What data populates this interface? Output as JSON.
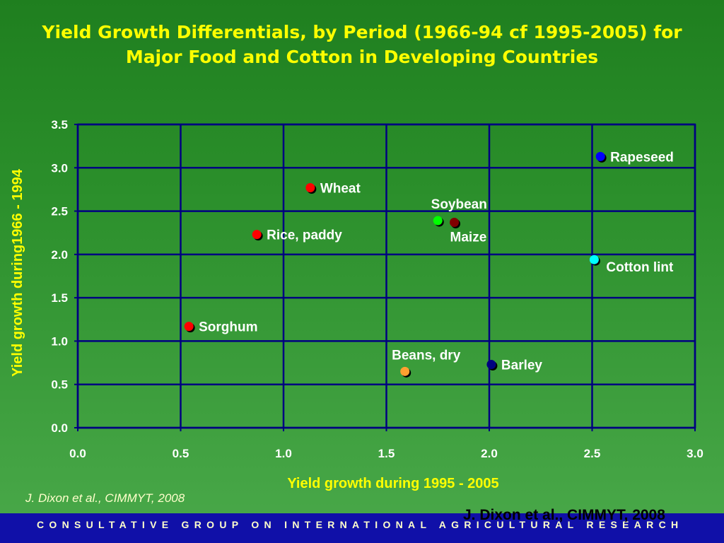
{
  "title": "Yield Growth Differentials, by Period (1966-94 cf 1995-2005) for Major Food and Cotton in Developing Countries",
  "citation_left": "J. Dixon et al., CIMMYT, 2008",
  "citation_right": "J. Dixon et al., CIMMYT, 2008",
  "footer": "CONSULTATIVE GROUP ON INTERNATIONAL AGRICULTURAL RESEARCH",
  "colors": {
    "background": "#2b8f2b",
    "title": "#ffff00",
    "axis_label": "#ffff00",
    "grid": "#000080",
    "footer_bar": "#1010a8"
  },
  "chart_data": {
    "type": "scatter",
    "title": "Yield Growth Differentials, by Period (1966-94 cf 1995-2005) for Major Food and Cotton in Developing Countries",
    "xlabel": "Yield growth during 1995 - 2005",
    "ylabel": "Yield growth during1966 - 1994",
    "xlim": [
      0,
      3
    ],
    "ylim": [
      0,
      3.5
    ],
    "xticks": [
      "0.0",
      "0.5",
      "1.0",
      "1.5",
      "2.0",
      "2.5",
      "3.0"
    ],
    "yticks": [
      "0.0",
      "0.5",
      "1.0",
      "1.5",
      "2.0",
      "2.5",
      "3.0",
      "3.5"
    ],
    "grid": true,
    "points": [
      {
        "label": "Rapeseed",
        "x": 2.54,
        "y": 3.13,
        "color": "#0000ff",
        "label_pos": "right"
      },
      {
        "label": "Wheat",
        "x": 1.13,
        "y": 2.77,
        "color": "#ff0000",
        "label_pos": "right"
      },
      {
        "label": "Soybean",
        "x": 1.75,
        "y": 2.39,
        "color": "#00ff00",
        "label_pos": "above"
      },
      {
        "label": "Maize",
        "x": 1.83,
        "y": 2.37,
        "color": "#800000",
        "label_pos": "below"
      },
      {
        "label": "Rice, paddy",
        "x": 0.87,
        "y": 2.23,
        "color": "#ff0000",
        "label_pos": "right"
      },
      {
        "label": "Cotton lint",
        "x": 2.51,
        "y": 1.94,
        "color": "#00ffff",
        "label_pos": "below-right"
      },
      {
        "label": "Sorghum",
        "x": 0.54,
        "y": 1.17,
        "color": "#ff0000",
        "label_pos": "right"
      },
      {
        "label": "Beans, dry",
        "x": 1.59,
        "y": 0.65,
        "color": "#ffa030",
        "label_pos": "above"
      },
      {
        "label": "Barley",
        "x": 2.01,
        "y": 0.73,
        "color": "#000080",
        "label_pos": "right"
      }
    ]
  }
}
